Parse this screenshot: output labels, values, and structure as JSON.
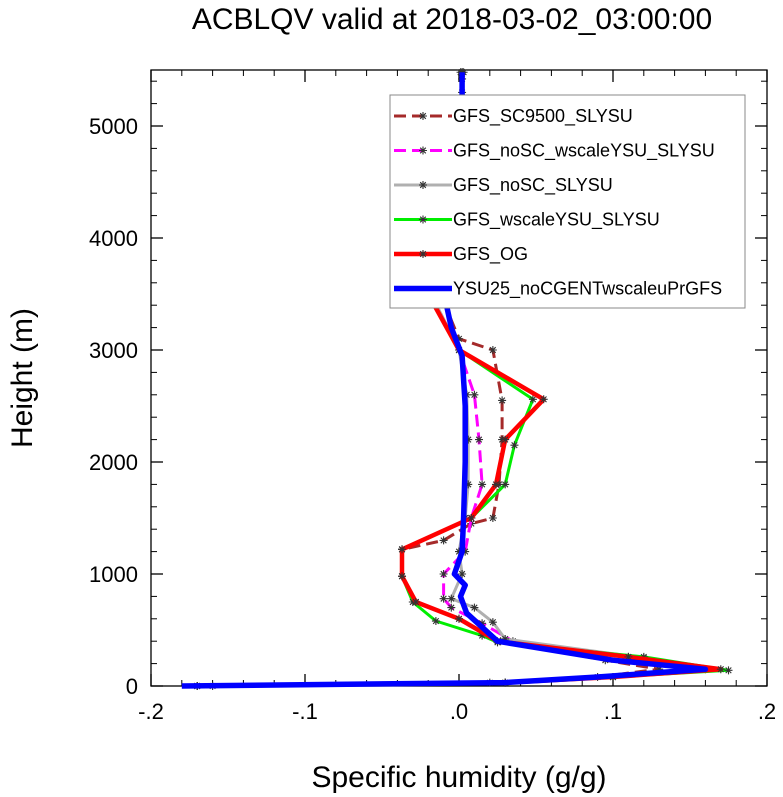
{
  "chart_data": {
    "type": "line",
    "title": "ACBLQV valid at 2018-03-02_03:00:00",
    "xlabel": "Specific humidity (g/g)",
    "ylabel": "Height (m)",
    "xlim": [
      -0.2,
      0.2
    ],
    "ylim": [
      0,
      5500
    ],
    "xticks": [
      -0.2,
      -0.1,
      0.0,
      0.1,
      0.2
    ],
    "xtick_labels": [
      "-.2",
      "-.1",
      ".0",
      ".1",
      ".2"
    ],
    "yticks": [
      0,
      1000,
      2000,
      3000,
      4000,
      5000
    ],
    "ytick_labels": [
      "0",
      "1000",
      "2000",
      "3000",
      "4000",
      "5000"
    ],
    "grid": false,
    "legend_position": "top-right",
    "series": [
      {
        "name": "GFS_SC9500_SLYSU",
        "color": "#a52a2a",
        "dash": "dash",
        "marker": "star",
        "x": [
          0.001,
          0.002,
          0.003,
          0.004,
          0.006,
          0.005,
          0.002,
          0.0,
          -0.012,
          0.0,
          0.022,
          0.028,
          0.028,
          0.026,
          0.022,
          0.008,
          -0.01,
          -0.037,
          -0.037,
          -0.028,
          0.0,
          0.027,
          0.095,
          0.13,
          0.09,
          0.02,
          -0.16
        ],
        "y": [
          5480,
          5420,
          5200,
          4900,
          4660,
          4420,
          4150,
          4080,
          3500,
          3100,
          3000,
          2550,
          2200,
          1800,
          1500,
          1450,
          1300,
          1220,
          980,
          750,
          600,
          400,
          230,
          150,
          80,
          30,
          0
        ]
      },
      {
        "name": "GFS_noSC_wscaleYSU_SLYSU",
        "color": "#ff00ff",
        "dash": "dash",
        "marker": "star",
        "x": [
          0.003,
          0.002,
          0.003,
          0.004,
          0.002,
          0.0,
          -0.015,
          -0.02,
          0.0,
          0.01,
          0.013,
          0.015,
          0.008,
          0.004,
          -0.01,
          -0.01,
          -0.005,
          0.015,
          0.035,
          0.11,
          0.15,
          0.1,
          0.03,
          -0.17
        ],
        "y": [
          5480,
          5300,
          5000,
          4700,
          4400,
          4100,
          3700,
          3550,
          3000,
          2600,
          2200,
          1800,
          1500,
          1200,
          1000,
          780,
          700,
          560,
          400,
          260,
          150,
          80,
          30,
          0
        ]
      },
      {
        "name": "GFS_noSC_SLYSU",
        "color": "#b0b0b0",
        "dash": "solid",
        "marker": "star",
        "x": [
          0.002,
          0.002,
          0.002,
          0.0,
          -0.015,
          -0.02,
          0.0,
          0.005,
          0.006,
          0.006,
          0.004,
          0.0,
          0.002,
          -0.005,
          0.01,
          0.022,
          0.03,
          0.12,
          0.16,
          0.1,
          0.03,
          -0.17
        ],
        "y": [
          5480,
          5200,
          4600,
          4200,
          3700,
          3550,
          3000,
          2600,
          2200,
          1800,
          1500,
          1200,
          1000,
          780,
          700,
          570,
          420,
          250,
          150,
          80,
          30,
          0
        ]
      },
      {
        "name": "GFS_wscaleYSU_SLYSU",
        "color": "#00ee00",
        "dash": "solid",
        "marker": "star",
        "x": [
          0.002,
          0.002,
          0.002,
          0.0,
          -0.015,
          -0.02,
          0.0,
          0.048,
          0.036,
          0.03,
          0.008,
          -0.037,
          -0.037,
          -0.03,
          -0.015,
          0.015,
          0.025,
          0.12,
          0.175,
          0.1,
          0.03,
          -0.17
        ],
        "y": [
          5480,
          5200,
          4600,
          4200,
          3700,
          3500,
          3000,
          2560,
          2150,
          1800,
          1500,
          1220,
          980,
          750,
          580,
          450,
          390,
          260,
          140,
          80,
          30,
          0
        ]
      },
      {
        "name": "GFS_OG",
        "color": "#ff0000",
        "dash": "solid",
        "marker": "star",
        "x": [
          0.002,
          0.002,
          0.002,
          0.0,
          -0.015,
          -0.02,
          0.0,
          0.055,
          0.03,
          0.024,
          0.008,
          -0.037,
          -0.037,
          -0.028,
          0.0,
          0.025,
          0.11,
          0.17,
          0.1,
          0.03,
          -0.17
        ],
        "y": [
          5480,
          5200,
          4600,
          4200,
          3700,
          3500,
          3000,
          2560,
          2200,
          1800,
          1500,
          1220,
          980,
          750,
          600,
          400,
          260,
          150,
          80,
          30,
          0
        ]
      },
      {
        "name": "YSU25_noCGENTwscaleuPrGFS",
        "color": "#0000ff",
        "dash": "solid",
        "marker": "none",
        "x": [
          0.002,
          0.002,
          0.0,
          -0.012,
          -0.005,
          0.002,
          0.004,
          0.004,
          0.003,
          0.002,
          -0.003,
          0.004,
          0.001,
          0.005,
          0.025,
          0.1,
          0.16,
          0.09,
          0.03,
          -0.18
        ],
        "y": [
          5480,
          4800,
          4200,
          3650,
          3200,
          2950,
          2500,
          2000,
          1500,
          1200,
          1000,
          900,
          800,
          650,
          400,
          230,
          150,
          80,
          30,
          0
        ]
      }
    ]
  }
}
